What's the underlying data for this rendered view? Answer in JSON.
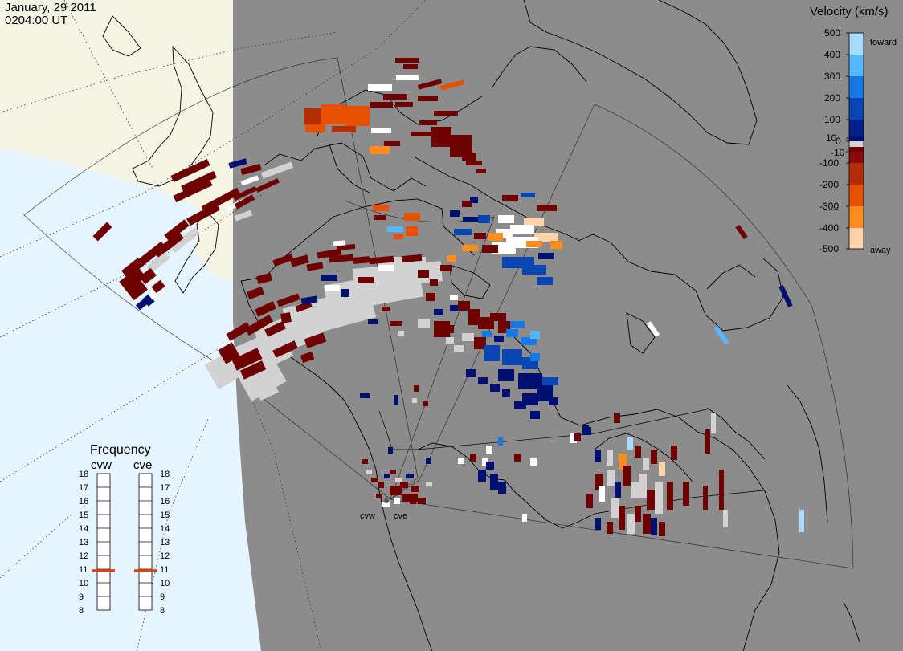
{
  "header": {
    "date": "January, 29 2011",
    "time": "0204:00 UT"
  },
  "velocity_scale": {
    "title": "Velocity (km/s)",
    "ticks": [
      "500",
      "400",
      "300",
      "200",
      "100",
      "10",
      "0",
      "-10",
      "-100",
      "-200",
      "-300",
      "-400",
      "-500"
    ],
    "toward_label": "toward",
    "away_label": "away",
    "toward_colors": [
      "#a8dcff",
      "#55b8ff",
      "#1478e6",
      "#0a45b4",
      "#00208c",
      "#001070"
    ],
    "away_colors": [
      "#6e0000",
      "#8c0a0a",
      "#b42d05",
      "#e65000",
      "#ff8c1e",
      "#ffd2aa"
    ],
    "ground_scatter_color": "#d2d2d2"
  },
  "frequency_panel": {
    "title": "Frequency",
    "columns": [
      "cvw",
      "cve"
    ],
    "scale_mhz": [
      "18",
      "17",
      "16",
      "15",
      "14",
      "13",
      "12",
      "11",
      "10",
      "9",
      "8"
    ],
    "cvw_frequency_mhz": 10.9,
    "cve_frequency_mhz": 10.9,
    "indicator_color": "#e04010"
  },
  "stations": [
    {
      "id": "cvw",
      "label": "cvw"
    },
    {
      "id": "cve",
      "label": "cve"
    }
  ],
  "map_colors": {
    "night": "#8c8c8c",
    "day_land": "#f5f5e6",
    "day_ocean": "#e6f5ff",
    "coast": "#000000"
  }
}
